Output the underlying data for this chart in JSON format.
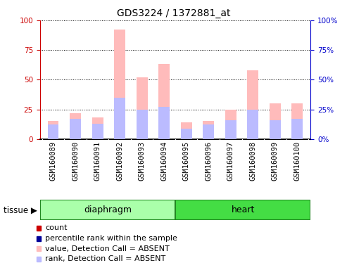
{
  "title": "GDS3224 / 1372881_at",
  "samples": [
    "GSM160089",
    "GSM160090",
    "GSM160091",
    "GSM160092",
    "GSM160093",
    "GSM160094",
    "GSM160095",
    "GSM160096",
    "GSM160097",
    "GSM160098",
    "GSM160099",
    "GSM160100"
  ],
  "value_absent": [
    15,
    22,
    18,
    92,
    52,
    63,
    14,
    15,
    25,
    58,
    30,
    30
  ],
  "rank_absent": [
    12,
    17,
    13,
    35,
    25,
    27,
    9,
    12,
    16,
    25,
    16,
    17
  ],
  "ylim": [
    0,
    100
  ],
  "yticks": [
    0,
    25,
    50,
    75,
    100
  ],
  "color_value_absent": "#FFBBBB",
  "color_rank_absent": "#BBBBFF",
  "color_count": "#CC0000",
  "color_percentile": "#000099",
  "tissue_color_light": "#AAFFAA",
  "tissue_color_dark": "#44DD44",
  "tissue_border_color": "#228822",
  "sample_bg_color": "#CCCCCC",
  "plot_bg": "#FFFFFF",
  "left_axis_color": "#CC0000",
  "right_axis_color": "#0000CC",
  "title_fontsize": 10,
  "tick_fontsize": 7.5,
  "legend_fontsize": 8,
  "tissue_fontsize": 9,
  "diaphragm_range": [
    0,
    5
  ],
  "heart_range": [
    6,
    11
  ]
}
